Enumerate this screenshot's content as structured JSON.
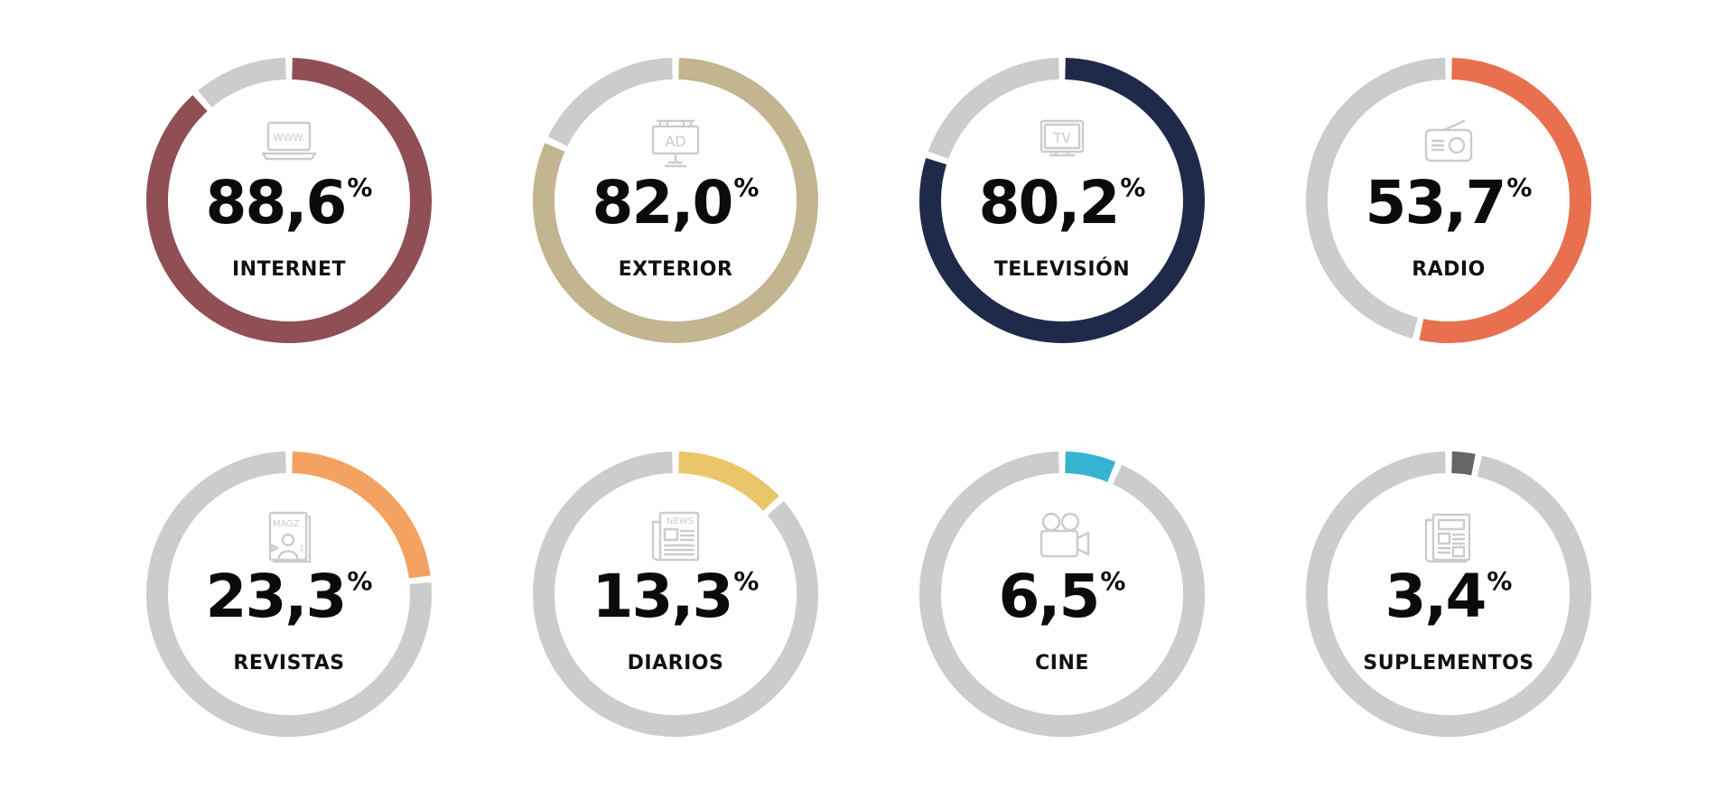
{
  "chart_data": {
    "type": "donut",
    "track_color": "#cccccc",
    "unit": "%",
    "items": [
      {
        "label": "INTERNET",
        "value_text": "88,6",
        "value": 88.6,
        "color": "#8f4f55",
        "icon": "laptop-www-icon"
      },
      {
        "label": "EXTERIOR",
        "value_text": "82,0",
        "value": 82.0,
        "color": "#c2b58f",
        "icon": "billboard-ad-icon"
      },
      {
        "label": "TELEVISIÓN",
        "value_text": "80,2",
        "value": 80.2,
        "color": "#1f2a4a",
        "icon": "tv-icon"
      },
      {
        "label": "RADIO",
        "value_text": "53,7",
        "value": 53.7,
        "color": "#e8704f",
        "icon": "radio-icon"
      },
      {
        "label": "REVISTAS",
        "value_text": "23,3",
        "value": 23.3,
        "color": "#f4a261",
        "icon": "magazine-icon"
      },
      {
        "label": "DIARIOS",
        "value_text": "13,3",
        "value": 13.3,
        "color": "#ebc56a",
        "icon": "newspaper-icon"
      },
      {
        "label": "CINE",
        "value_text": "6,5",
        "value": 6.5,
        "color": "#36b3d3",
        "icon": "movie-camera-icon"
      },
      {
        "label": "SUPLEMENTOS",
        "value_text": "3,4",
        "value": 3.4,
        "color": "#666666",
        "icon": "supplement-icon"
      }
    ]
  }
}
